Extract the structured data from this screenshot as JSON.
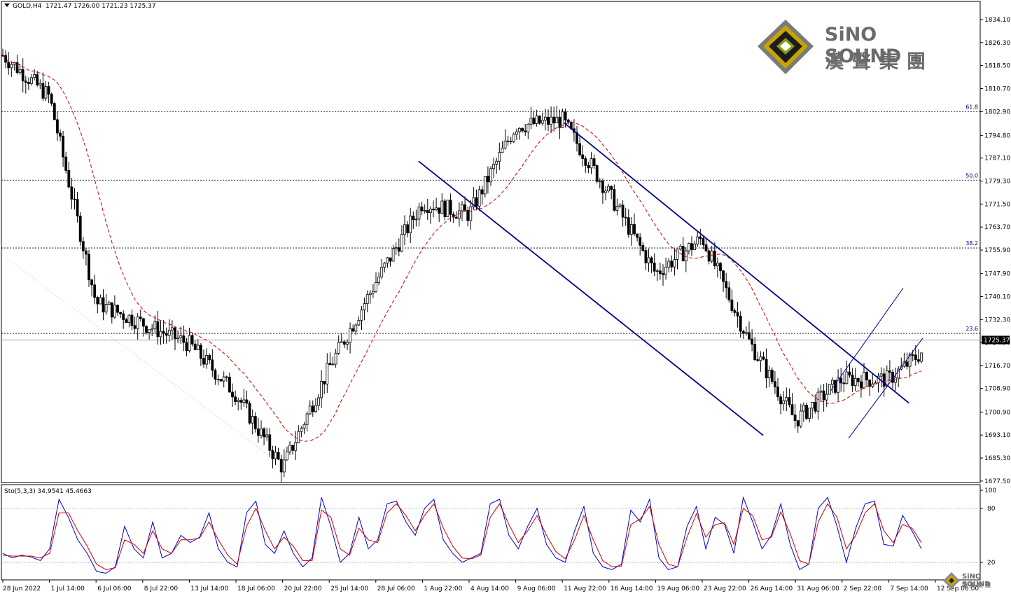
{
  "header": {
    "symbol": "GOLD,H4",
    "ohlc": "1721.47 1726.00 1721.23 1725.37"
  },
  "stochastic_header": {
    "label": "Sto(5,3,3)",
    "values": "34.9541 45.4663"
  },
  "logo": {
    "brand": "SiNO SOUND",
    "chinese": "漢聲集團"
  },
  "watermark": {
    "brand": "SiNO SOUND",
    "chinese": "漢聲集團"
  },
  "colors": {
    "candle": "#000000",
    "ma": "#cc0000",
    "channel": "#00008b",
    "fib": "#00008b",
    "stoch_main": "#0000cd",
    "stoch_signal": "#cc0000",
    "price_tag_bg": "#000000"
  },
  "chart_data": [
    {
      "type": "candlestick",
      "title": "",
      "current_price": 1725.37,
      "ylim": [
        1677.7,
        1836.0
      ],
      "y_ticks": [
        "1834.10",
        "1826.30",
        "1818.50",
        "1810.70",
        "1802.90",
        "1794.80",
        "1787.10",
        "1779.30",
        "1771.50",
        "1763.70",
        "1755.90",
        "1747.90",
        "1740.10",
        "1732.30",
        "1724.50",
        "1716.70",
        "1708.90",
        "1700.90",
        "1693.10",
        "1685.30",
        "1677.50"
      ],
      "x_ticks": [
        "28 Jun 2022",
        "1 Jul 14:00",
        "6 Jul 06:00",
        "8 Jul 22:00",
        "13 Jul 14:00",
        "18 Jul 06:00",
        "20 Jul 22:00",
        "25 Jul 14:00",
        "28 Jul 06:00",
        "1 Aug 22:00",
        "4 Aug 14:00",
        "9 Aug 06:00",
        "11 Aug 22:00",
        "16 Aug 14:00",
        "19 Aug 06:00",
        "23 Aug 22:00",
        "26 Aug 14:00",
        "31 Aug 06:00",
        "2 Sep 22:00",
        "7 Sep 14:00",
        "12 Sep 06:00"
      ],
      "fibonacci": [
        {
          "label": "61.8",
          "price": 1802.9
        },
        {
          "label": "50.0",
          "price": 1779.6
        },
        {
          "label": "38.2",
          "price": 1756.6
        },
        {
          "label": "23.6",
          "price": 1727.6
        }
      ],
      "key_points": [
        {
          "x": "28 Jun 2022",
          "price": 1822
        },
        {
          "x": "1 Jul 14:00",
          "price": 1808
        },
        {
          "x": "6 Jul 06:00",
          "price": 1738
        },
        {
          "x": "13 Jul 14:00",
          "price": 1724
        },
        {
          "x": "18 Jul 06:00",
          "price": 1707
        },
        {
          "x": "20 Jul 22:00",
          "price": 1682
        },
        {
          "x": "25 Jul 14:00",
          "price": 1716
        },
        {
          "x": "28 Jul 06:00",
          "price": 1745
        },
        {
          "x": "1 Aug 22:00",
          "price": 1772
        },
        {
          "x": "4 Aug 14:00",
          "price": 1768
        },
        {
          "x": "9 Aug 06:00",
          "price": 1798
        },
        {
          "x": "11 Aug 22:00",
          "price": 1800
        },
        {
          "x": "16 Aug 14:00",
          "price": 1775
        },
        {
          "x": "19 Aug 06:00",
          "price": 1748
        },
        {
          "x": "23 Aug 22:00",
          "price": 1760
        },
        {
          "x": "26 Aug 14:00",
          "price": 1725
        },
        {
          "x": "31 Aug 06:00",
          "price": 1698
        },
        {
          "x": "2 Sep 22:00",
          "price": 1712
        },
        {
          "x": "7 Sep 14:00",
          "price": 1712
        },
        {
          "x": "12 Sep 06:00",
          "price": 1725
        }
      ]
    },
    {
      "type": "line",
      "title": "",
      "ylim": [
        0,
        100
      ],
      "y_ticks": [
        "100",
        "80",
        "20"
      ],
      "levels": [
        80,
        20
      ],
      "series": [
        {
          "values": [
            30,
            25,
            28,
            26,
            22,
            35,
            90,
            70,
            45,
            30,
            10,
            8,
            15,
            60,
            35,
            25,
            65,
            25,
            30,
            50,
            42,
            48,
            75,
            35,
            20,
            15,
            75,
            88,
            40,
            30,
            55,
            30,
            15,
            25,
            92,
            60,
            20,
            30,
            70,
            35,
            45,
            85,
            88,
            65,
            50,
            80,
            90,
            45,
            30,
            20,
            25,
            30,
            85,
            90,
            50,
            35,
            60,
            80,
            40,
            25,
            20,
            55,
            82,
            30,
            15,
            12,
            18,
            78,
            65,
            90,
            25,
            12,
            15,
            60,
            82,
            35,
            70,
            62,
            30,
            92,
            65,
            35,
            50,
            85,
            40,
            12,
            18,
            80,
            92,
            60,
            20,
            58,
            85,
            88,
            40,
            38,
            72,
            55,
            35
          ]
        },
        {
          "values": [
            28,
            27,
            27,
            27,
            25,
            30,
            75,
            75,
            55,
            38,
            18,
            12,
            14,
            45,
            40,
            30,
            55,
            35,
            30,
            45,
            45,
            47,
            65,
            45,
            28,
            18,
            60,
            80,
            55,
            35,
            48,
            38,
            22,
            22,
            78,
            70,
            35,
            28,
            58,
            45,
            42,
            75,
            85,
            72,
            55,
            72,
            85,
            58,
            38,
            25,
            24,
            28,
            70,
            85,
            62,
            42,
            55,
            72,
            50,
            32,
            24,
            45,
            72,
            45,
            22,
            15,
            16,
            62,
            68,
            82,
            40,
            18,
            15,
            48,
            74,
            48,
            62,
            64,
            40,
            80,
            72,
            45,
            48,
            76,
            52,
            22,
            18,
            65,
            85,
            70,
            35,
            50,
            75,
            85,
            55,
            42,
            62,
            58,
            42
          ]
        }
      ]
    }
  ]
}
